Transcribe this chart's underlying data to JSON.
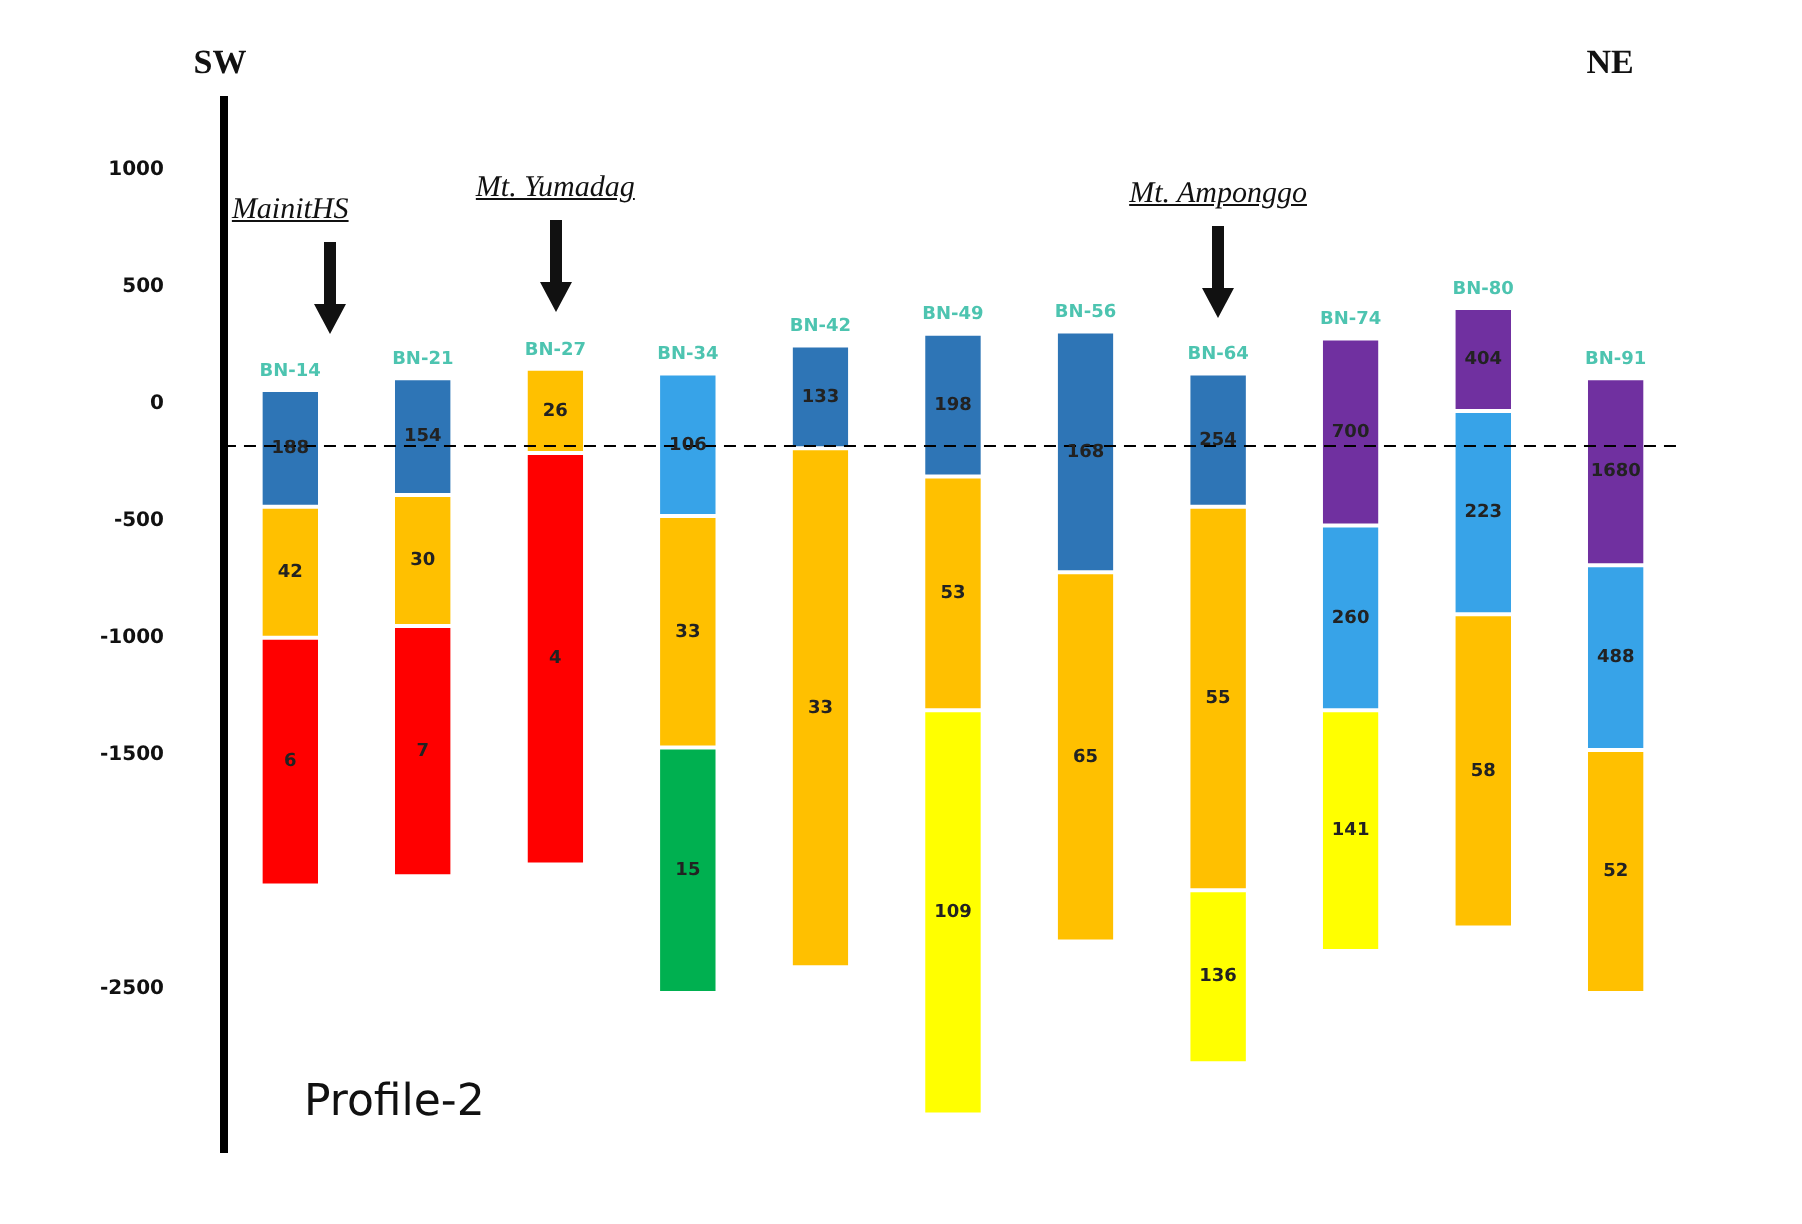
{
  "chart_data": {
    "type": "bar",
    "orientation": "vertical",
    "categories": [
      "BN-14",
      "BN-21",
      "BN-27",
      "BN-34",
      "BN-42",
      "BN-49",
      "BN-56",
      "BN-64",
      "BN-74",
      "BN-80",
      "BN-91"
    ],
    "series": [
      {
        "base": [
          60,
          110,
          150,
          130,
          250,
          300,
          310,
          130,
          280,
          410,
          110
        ],
        "values": [
          -500,
          -500,
          -360,
          -610,
          -440,
          -610,
          -1030,
          -570,
          -800,
          -440,
          -800
        ],
        "colors": [
          "#2e75b6",
          "#2e75b6",
          "#ffc000",
          "#37a3e8",
          "#2e75b6",
          "#2e75b6",
          "#2e75b6",
          "#2e75b6",
          "#7030a0",
          "#7030a0",
          "#7030a0"
        ]
      },
      {
        "base": [
          -440,
          -390,
          -210,
          -480,
          -190,
          -310,
          -720,
          -440,
          -520,
          -30,
          -690
        ],
        "values": [
          -560,
          -560,
          -1760,
          -990,
          -2220,
          -1000,
          -1580,
          -1640,
          -790,
          -870,
          -790
        ],
        "colors": [
          "#ffc000",
          "#ffc000",
          "#ff0000",
          "#ffc000",
          "#ffc000",
          "#ffc000",
          "#ffc000",
          "#ffc000",
          "#37a3e8",
          "#37a3e8",
          "#37a3e8"
        ]
      },
      {
        "base": [
          -1000,
          -950,
          null,
          -1470,
          null,
          -1310,
          null,
          -2080,
          -1310,
          -900,
          -1480
        ],
        "values": [
          -1060,
          -1070,
          null,
          -1050,
          null,
          -1730,
          null,
          -740,
          -1030,
          -1340,
          -1040
        ],
        "colors": [
          "#ff0000",
          "#ff0000",
          null,
          "#00b050",
          null,
          "#ffff00",
          null,
          "#ffff00",
          "#ffff00",
          "#ffc000",
          "#ffc000"
        ]
      }
    ],
    "ylim": [
      -3200,
      1300
    ],
    "yticks": [
      1000,
      500,
      0,
      -500,
      -1000,
      -1500,
      -2500
    ],
    "ref_lines": [
      {
        "axis": "y",
        "value": -180,
        "color": "#000000",
        "line_style": "dashed"
      }
    ],
    "grid": false,
    "legend": false,
    "annotations": [
      "SW",
      "NE",
      "Profile-2",
      "MainitHS",
      "Mt. Yumadag",
      "Mt. Amponggo",
      "188",
      "42",
      "6",
      "154",
      "30",
      "7",
      "26",
      "4",
      "106",
      "33",
      "15",
      "133",
      "33",
      "198",
      "53",
      "109",
      "168",
      "65",
      "254",
      "55",
      "136",
      "700",
      "260",
      "141",
      "404",
      "223",
      "58",
      "1680",
      "488",
      "52"
    ]
  }
}
